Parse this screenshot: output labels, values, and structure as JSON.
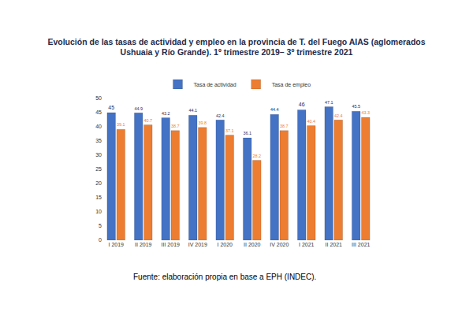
{
  "chart_data": {
    "type": "bar",
    "title": "Evolución de las tasas de actividad y empleo en la provincia de T. del Fuego AIAS (aglomerados\nUshuaia y Río Grande). 1º trimestre 2019– 3º trimestre 2021",
    "annotations": [
      "Fuente: elaboración propia en base a EPH (INDEC)."
    ],
    "categories": [
      "I 2019",
      "II 2019",
      "III 2019",
      "IV 2019",
      "I 2020",
      "II 2020",
      "IV 2020",
      "I 2021",
      "II 2021",
      "III 2021"
    ],
    "series": [
      {
        "name": "Tasa de actividad",
        "color": "#4472c4",
        "values": [
          45,
          44.9,
          43.2,
          44.1,
          42.4,
          36.1,
          44.4,
          46,
          47.1,
          45.5
        ]
      },
      {
        "name": "Tasa de empleo",
        "color": "#ed7d31",
        "values": [
          39.1,
          40.7,
          38.7,
          39.8,
          37.1,
          28.2,
          38.7,
          40.4,
          42.4,
          43.3
        ]
      }
    ],
    "ylim": [
      0,
      50
    ],
    "yticks": [
      0,
      5,
      10,
      15,
      20,
      25,
      30,
      35,
      40,
      45,
      50
    ],
    "grid": false,
    "legend": "top",
    "data_labels": true
  }
}
